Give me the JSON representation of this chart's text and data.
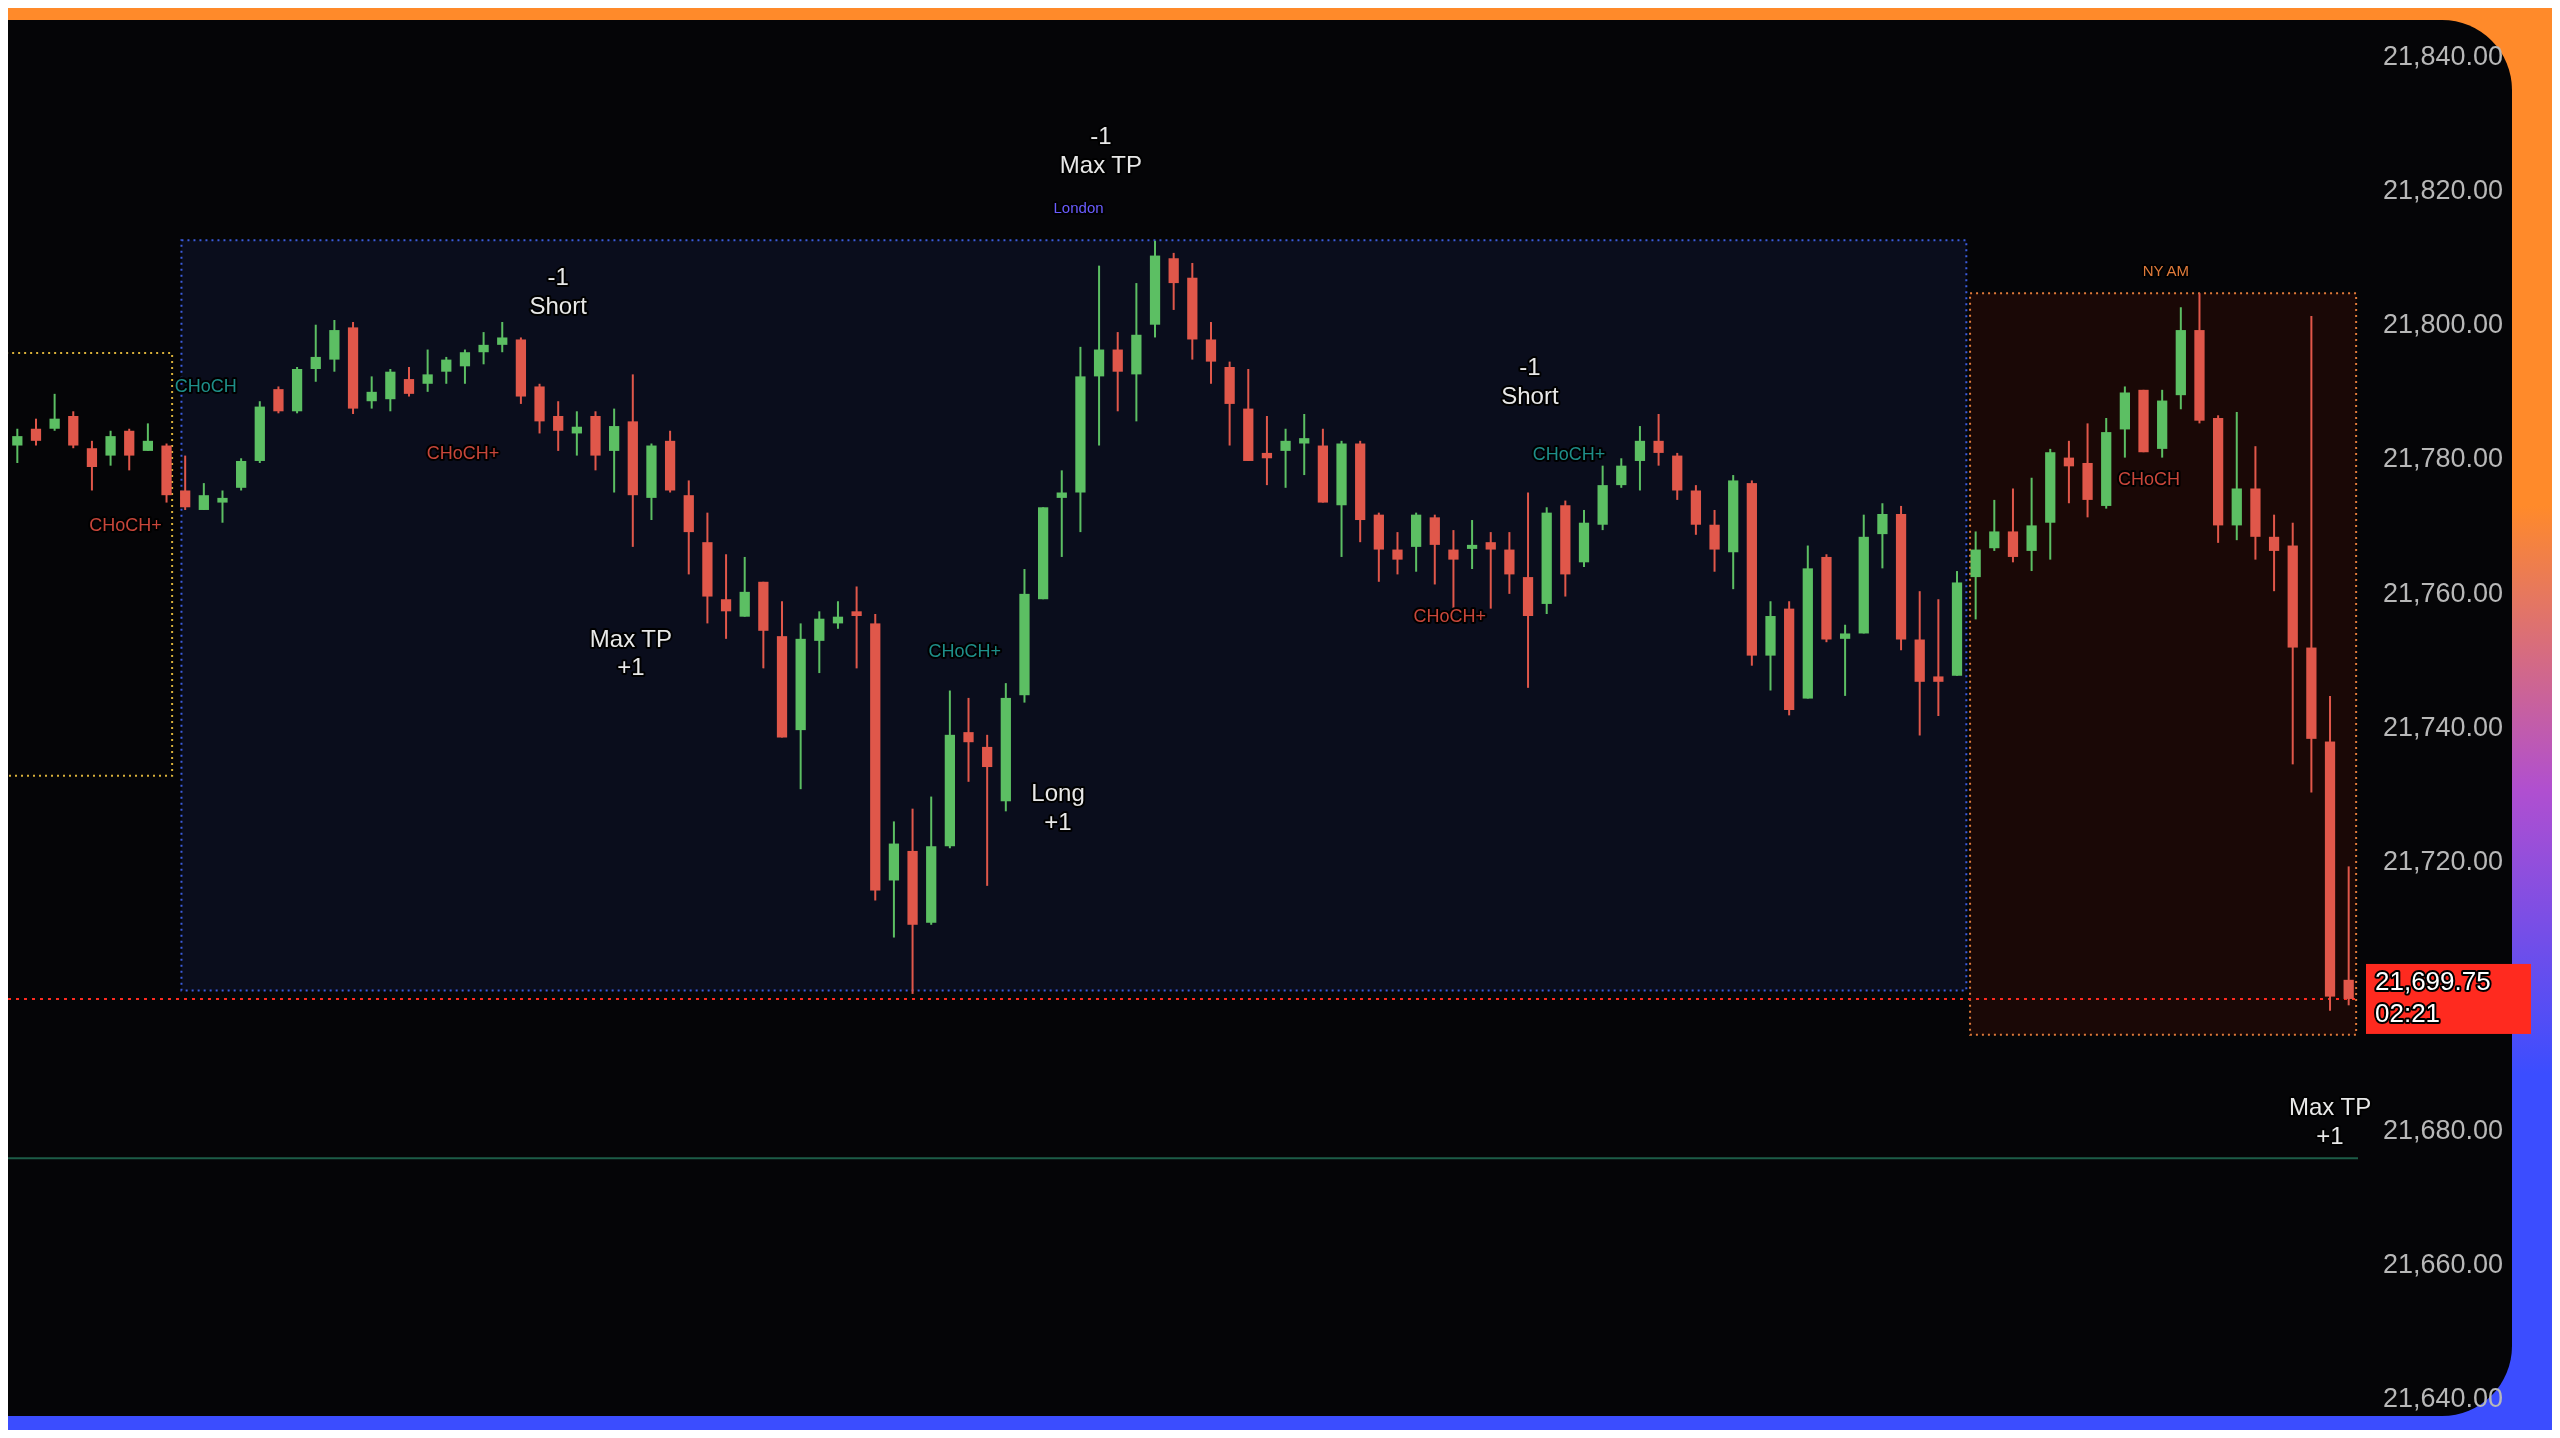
{
  "chart_data": {
    "type": "candlestick",
    "categories": [
      null,
      null,
      null,
      null,
      null,
      null,
      null,
      null,
      null,
      null,
      null,
      null,
      null,
      null,
      null,
      null,
      null,
      null,
      null,
      null,
      null,
      null,
      null,
      null,
      null,
      null,
      null,
      null,
      null,
      null,
      null,
      null,
      null,
      null,
      null,
      null,
      null,
      null,
      null,
      null,
      null,
      null,
      null,
      null,
      null,
      null,
      null,
      null,
      null,
      null,
      null,
      null,
      null,
      null,
      null,
      null,
      null,
      null,
      null,
      null,
      null,
      null,
      null,
      null,
      null,
      null,
      null,
      null,
      null,
      null,
      null,
      null,
      null,
      null,
      null,
      null,
      null,
      null,
      null,
      null,
      null,
      null,
      null,
      null,
      null,
      null,
      null,
      null,
      null,
      null,
      null,
      null,
      null,
      null,
      null,
      null,
      null,
      null,
      null,
      null,
      null,
      null,
      null,
      null,
      null,
      null,
      null,
      null,
      null,
      null,
      null,
      null,
      null,
      null,
      null,
      null,
      null,
      null,
      null,
      null,
      null,
      null,
      null,
      null,
      null,
      null
    ],
    "ohlc": [
      [
        21782.2,
        21784.7,
        21779.6,
        21783.6
      ],
      [
        21784.7,
        21786.2,
        21782.2,
        21782.9
      ],
      [
        21784.7,
        21789.9,
        21784.4,
        21786.2
      ],
      [
        21786.6,
        21787.3,
        21781.8,
        21782.2
      ],
      [
        21781.8,
        21782.9,
        21775.5,
        21779.0
      ],
      [
        21780.7,
        21784.4,
        21779.2,
        21783.6
      ],
      [
        21784.4,
        21784.7,
        21778.5,
        21780.7
      ],
      [
        21781.4,
        21785.5,
        21781.4,
        21782.9
      ],
      [
        21782.2,
        21782.5,
        21773.7,
        21774.8
      ],
      [
        21775.5,
        21780.7,
        21772.6,
        21773.0
      ],
      [
        21772.6,
        21776.6,
        21772.6,
        21774.8
      ],
      [
        21773.7,
        21775.5,
        21770.7,
        21774.4
      ],
      [
        21775.9,
        21780.3,
        21775.5,
        21779.9
      ],
      [
        21779.9,
        21788.8,
        21779.6,
        21788.0
      ],
      [
        21790.6,
        21791.0,
        21787.0,
        21787.3
      ],
      [
        21787.3,
        21793.9,
        21787.0,
        21793.6
      ],
      [
        21793.6,
        21800.2,
        21791.7,
        21795.4
      ],
      [
        21795.0,
        21800.9,
        21793.2,
        21799.4
      ],
      [
        21799.8,
        21800.6,
        21786.9,
        21787.7
      ],
      [
        21788.8,
        21792.5,
        21787.7,
        21790.2
      ],
      [
        21789.1,
        21793.6,
        21787.3,
        21793.2
      ],
      [
        21792.1,
        21793.9,
        21789.5,
        21789.9
      ],
      [
        21791.4,
        21796.5,
        21790.2,
        21792.8
      ],
      [
        21793.2,
        21795.4,
        21791.4,
        21795.0
      ],
      [
        21794.0,
        21796.5,
        21791.4,
        21796.1
      ],
      [
        21796.1,
        21799.1,
        21794.3,
        21797.2
      ],
      [
        21797.2,
        21800.6,
        21796.1,
        21798.3
      ],
      [
        21798.0,
        21798.3,
        21788.4,
        21789.5
      ],
      [
        21791.0,
        21791.4,
        21784.0,
        21785.8
      ],
      [
        21786.6,
        21788.8,
        21781.4,
        21784.4
      ],
      [
        21784.0,
        21787.3,
        21780.7,
        21785.0
      ],
      [
        21786.6,
        21787.3,
        21778.5,
        21780.7
      ],
      [
        21781.4,
        21787.7,
        21775.2,
        21785.1
      ],
      [
        21785.8,
        21792.8,
        21767.1,
        21774.8
      ],
      [
        21774.4,
        21782.5,
        21771.1,
        21782.2
      ],
      [
        21782.9,
        21784.4,
        21775.2,
        21775.5
      ],
      [
        21774.8,
        21777.0,
        21763.0,
        21769.3
      ],
      [
        21767.8,
        21772.2,
        21755.7,
        21759.7
      ],
      [
        21759.3,
        21766.0,
        21753.4,
        21757.5
      ],
      [
        21756.7,
        21765.6,
        21756.7,
        21760.4
      ],
      [
        21761.9,
        21761.9,
        21749.0,
        21754.6
      ],
      [
        21753.8,
        21759.0,
        21738.7,
        21738.7
      ],
      [
        21739.8,
        21755.7,
        21731.0,
        21753.4
      ],
      [
        21753.1,
        21757.5,
        21748.3,
        21756.4
      ],
      [
        21755.7,
        21759.0,
        21754.9,
        21756.7
      ],
      [
        21757.5,
        21761.2,
        21749.0,
        21756.8
      ],
      [
        21755.7,
        21757.1,
        21714.4,
        21715.9
      ],
      [
        21717.4,
        21726.2,
        21708.9,
        21722.9
      ],
      [
        21721.8,
        21728.1,
        21700.5,
        21710.8
      ],
      [
        21711.1,
        21729.9,
        21710.8,
        21722.5
      ],
      [
        21722.5,
        21745.7,
        21722.2,
        21739.1
      ],
      [
        21739.5,
        21744.6,
        21732.1,
        21738.0
      ],
      [
        21737.3,
        21739.1,
        21716.6,
        21734.3
      ],
      [
        21729.2,
        21746.8,
        21727.7,
        21744.6
      ],
      [
        21745.0,
        21763.8,
        21743.9,
        21760.1
      ],
      [
        21759.3,
        21773.0,
        21759.3,
        21773.0
      ],
      [
        21774.4,
        21778.5,
        21765.6,
        21775.2
      ],
      [
        21775.2,
        21796.9,
        21769.3,
        21792.5
      ],
      [
        21792.5,
        21809.0,
        21782.2,
        21796.5
      ],
      [
        21796.5,
        21799.1,
        21787.3,
        21793.2
      ],
      [
        21792.8,
        21806.4,
        21785.8,
        21798.7
      ],
      [
        21800.2,
        21812.7,
        21798.3,
        21810.5
      ],
      [
        21810.1,
        21810.9,
        21802.4,
        21806.4
      ],
      [
        21807.2,
        21809.4,
        21795.0,
        21798.0
      ],
      [
        21798.0,
        21800.6,
        21791.4,
        21794.7
      ],
      [
        21793.9,
        21794.7,
        21782.2,
        21788.4
      ],
      [
        21787.7,
        21793.6,
        21779.9,
        21779.9
      ],
      [
        21781.1,
        21786.6,
        21776.3,
        21780.3
      ],
      [
        21781.4,
        21784.7,
        21775.9,
        21782.9
      ],
      [
        21782.5,
        21786.9,
        21777.8,
        21783.3
      ],
      [
        21782.2,
        21784.7,
        21773.7,
        21773.7
      ],
      [
        21773.3,
        21782.9,
        21765.6,
        21782.5
      ],
      [
        21782.5,
        21782.9,
        21767.8,
        21771.1
      ],
      [
        21771.9,
        21772.2,
        21761.9,
        21766.7
      ],
      [
        21766.7,
        21769.3,
        21763.0,
        21765.2
      ],
      [
        21767.1,
        21772.2,
        21763.4,
        21771.9
      ],
      [
        21771.5,
        21771.9,
        21761.5,
        21767.4
      ],
      [
        21766.7,
        21769.6,
        21757.9,
        21765.2
      ],
      [
        21766.8,
        21771.1,
        21763.8,
        21767.4
      ],
      [
        21767.8,
        21769.3,
        21757.9,
        21766.7
      ],
      [
        21766.7,
        21769.3,
        21760.1,
        21763.0
      ],
      [
        21762.6,
        21775.2,
        21746.1,
        21756.8
      ],
      [
        21758.6,
        21773.0,
        21757.1,
        21772.2
      ],
      [
        21773.3,
        21774.0,
        21759.7,
        21763.0
      ],
      [
        21764.8,
        21772.6,
        21764.1,
        21770.7
      ],
      [
        21770.4,
        21779.2,
        21769.6,
        21776.3
      ],
      [
        21776.3,
        21780.3,
        21775.9,
        21779.2
      ],
      [
        21779.9,
        21785.1,
        21775.5,
        21782.9
      ],
      [
        21782.9,
        21786.9,
        21779.2,
        21781.1
      ],
      [
        21780.7,
        21781.1,
        21774.1,
        21775.5
      ],
      [
        21775.5,
        21776.3,
        21768.9,
        21770.4
      ],
      [
        21770.4,
        21772.6,
        21763.4,
        21766.7
      ],
      [
        21766.3,
        21777.8,
        21760.8,
        21777.0
      ],
      [
        21776.6,
        21777.0,
        21749.4,
        21750.9
      ],
      [
        21750.9,
        21759.0,
        21745.7,
        21756.8
      ],
      [
        21757.9,
        21759.0,
        21742.0,
        21742.8
      ],
      [
        21744.5,
        21767.3,
        21744.5,
        21763.9
      ],
      [
        21765.6,
        21766.0,
        21752.9,
        21753.3
      ],
      [
        21753.4,
        21755.5,
        21744.9,
        21754.2
      ],
      [
        21754.2,
        21771.9,
        21754.2,
        21768.6
      ],
      [
        21769.0,
        21773.6,
        21763.9,
        21772.0
      ],
      [
        21772.0,
        21773.2,
        21751.7,
        21753.3
      ],
      [
        21753.3,
        21760.5,
        21739.0,
        21747.0
      ],
      [
        21747.8,
        21759.3,
        21741.9,
        21747.0
      ],
      [
        21747.9,
        21763.5,
        21747.9,
        21761.8
      ],
      [
        21762.6,
        21769.4,
        21756.3,
        21766.7
      ],
      [
        21766.9,
        21774.1,
        21766.5,
        21769.4
      ],
      [
        21769.4,
        21775.8,
        21764.8,
        21765.6
      ],
      [
        21766.5,
        21777.4,
        21763.5,
        21770.3
      ],
      [
        21770.7,
        21781.7,
        21765.2,
        21781.2
      ],
      [
        21780.4,
        21782.9,
        21773.6,
        21779.1
      ],
      [
        21779.6,
        21785.5,
        21771.5,
        21774.1
      ],
      [
        21773.2,
        21786.3,
        21772.8,
        21784.2
      ],
      [
        21784.6,
        21791.0,
        21780.4,
        21790.1
      ],
      [
        21790.5,
        21790.5,
        21781.2,
        21781.2
      ],
      [
        21781.7,
        21790.5,
        21780.4,
        21788.9
      ],
      [
        21789.7,
        21802.8,
        21787.6,
        21799.4
      ],
      [
        21799.4,
        21804.9,
        21785.5,
        21785.9
      ],
      [
        21786.3,
        21786.7,
        21767.7,
        21770.3
      ],
      [
        21770.3,
        21787.2,
        21768.1,
        21775.8
      ],
      [
        21775.8,
        21782.1,
        21765.2,
        21768.6
      ],
      [
        21768.6,
        21771.9,
        21760.5,
        21766.5
      ],
      [
        21767.3,
        21770.7,
        21734.7,
        21752.1
      ],
      [
        21752.1,
        21801.5,
        21730.5,
        21738.5
      ],
      [
        21738.1,
        21744.9,
        21698.0,
        21700.1
      ],
      [
        21702.6,
        21719.5,
        21698.8,
        21699.75
      ]
    ],
    "ylim": [
      21640,
      21845
    ],
    "yticks": [
      {
        "value": 21640,
        "label": "21,640.00"
      },
      {
        "value": 21660,
        "label": "21,660.00"
      },
      {
        "value": 21680,
        "label": "21,680.00"
      },
      {
        "value": 21720,
        "label": "21,720.00"
      },
      {
        "value": 21740,
        "label": "21,740.00"
      },
      {
        "value": 21760,
        "label": "21,760.00"
      },
      {
        "value": 21780,
        "label": "21,780.00"
      },
      {
        "value": 21800,
        "label": "21,800.00"
      },
      {
        "value": 21820,
        "label": "21,820.00"
      },
      {
        "value": 21840,
        "label": "21,840.00"
      }
    ],
    "tick_labels": "y",
    "ref_lines": [
      {
        "axis": "y",
        "value": 21699.75,
        "label": "21,699.75\n02:21",
        "color": "#ff2a1f",
        "line_style": "dotted"
      },
      {
        "axis": "y",
        "value": 21676,
        "color": "#1d5c47",
        "line_style": "solid"
      }
    ],
    "annotations": [
      "-1\nShort",
      "Max TP\n+1",
      "-1\nMax TP",
      "Long\n+1",
      "-1\nShort",
      "Max TP\n+1",
      "CHoCH",
      "CHoCH+",
      "CHoCH+",
      "CHoCH+",
      "CHoCH+",
      "CHoCH+",
      "CHoCH",
      "London",
      "NY AM"
    ],
    "grid": false
  }
}
